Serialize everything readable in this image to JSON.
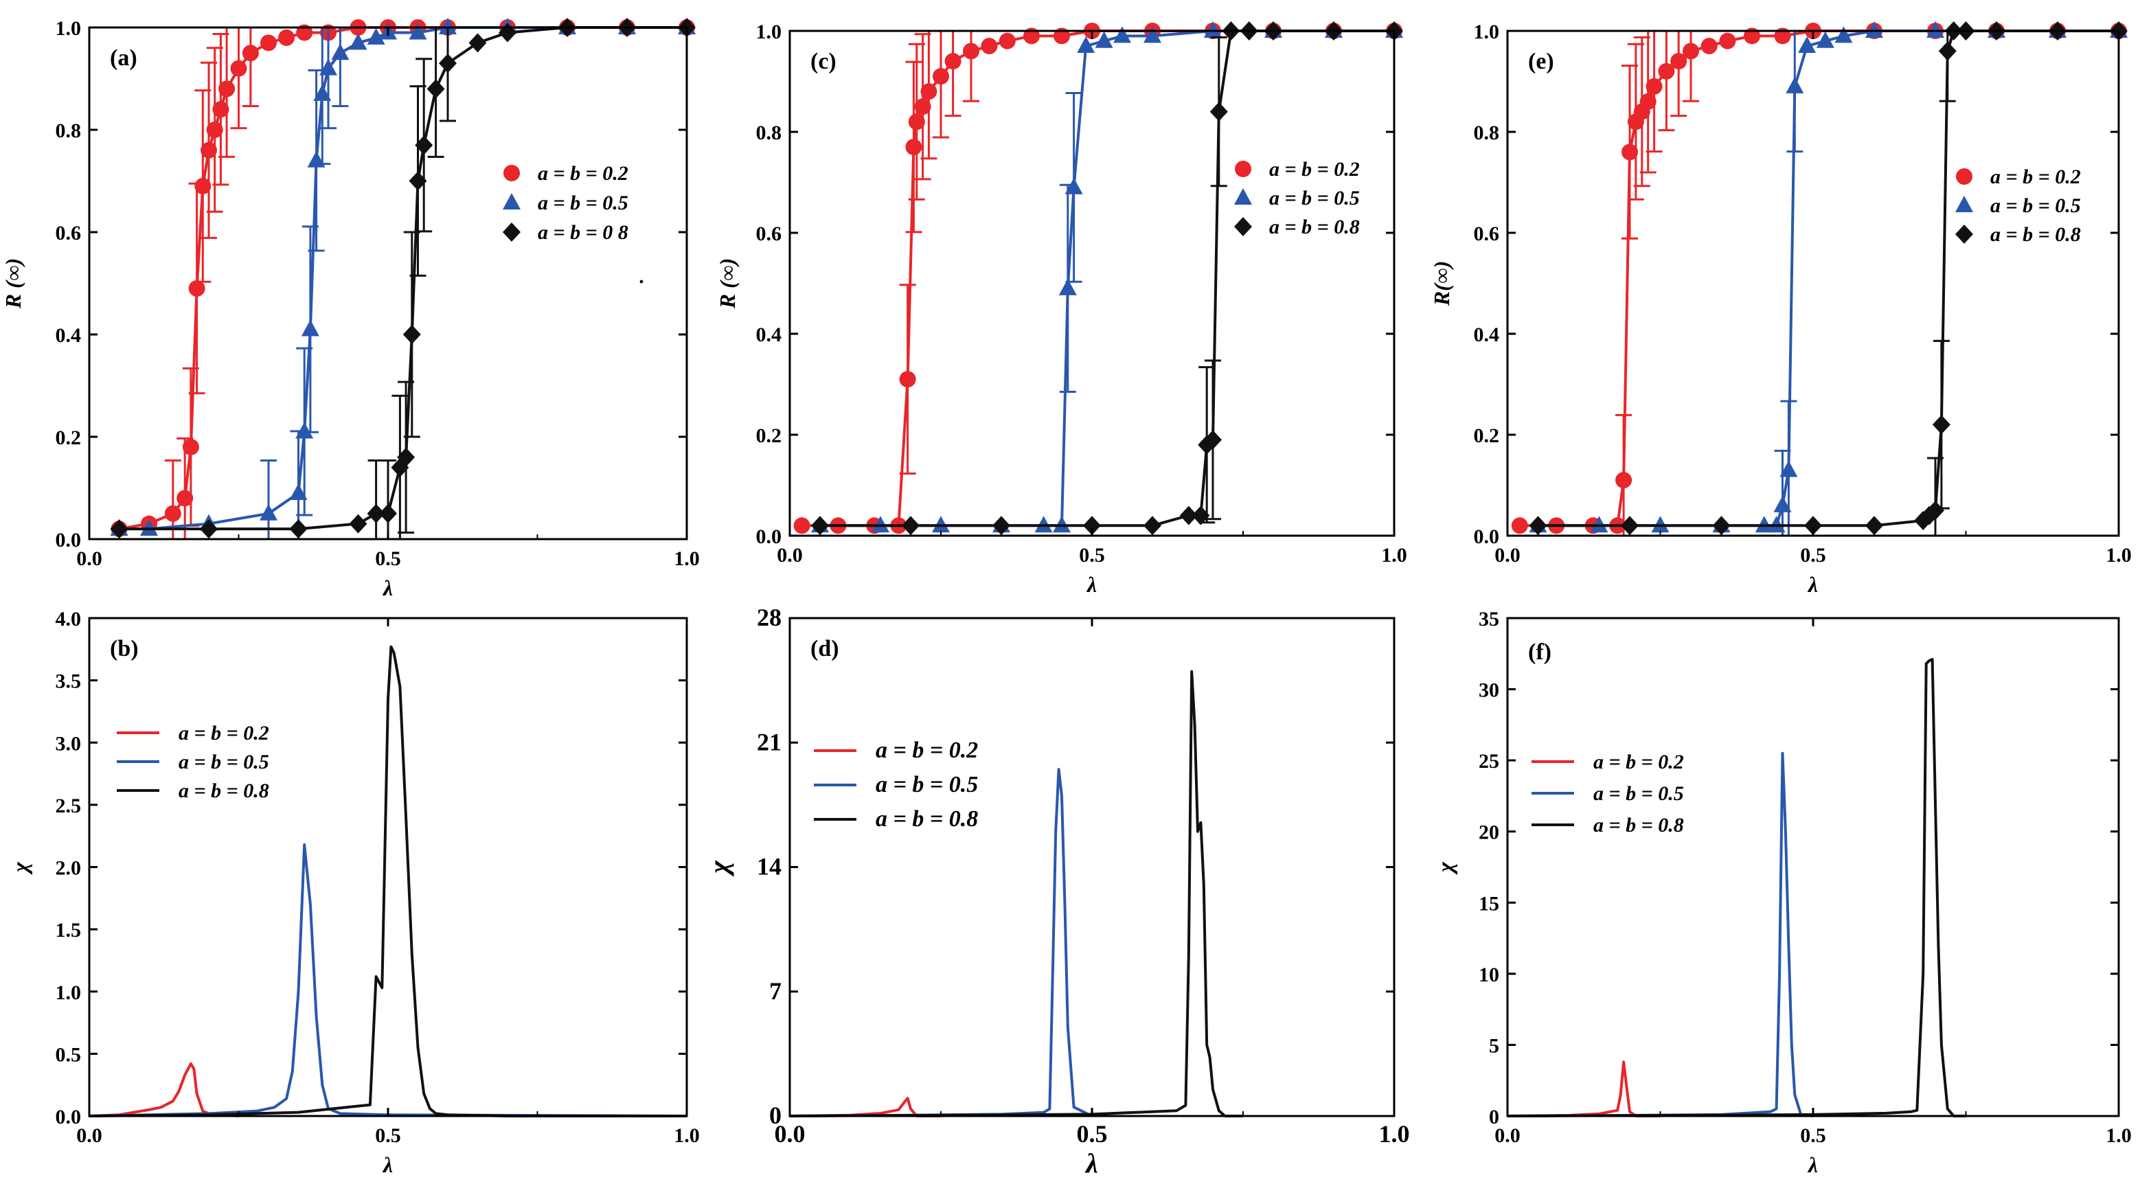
{
  "colors": {
    "red": "#e8262b",
    "blue": "#2a57ae",
    "black": "#111111"
  },
  "chart_data": [
    {
      "panel": "(a)",
      "type": "scatter",
      "xlabel": "λ",
      "ylabel": "R (∞)",
      "xlim": [
        0,
        1
      ],
      "ylim": [
        0,
        1
      ],
      "xticks": [
        "0.0",
        "0.5",
        "1.0"
      ],
      "yticks": [
        "0.0",
        "0.2",
        "0.4",
        "0.6",
        "0.8",
        "1.0"
      ],
      "legend": [
        "a = b = 0.2",
        "a = b = 0.5",
        "a = b = 0 8"
      ],
      "annotation": "·",
      "series": [
        {
          "name": "a = b = 0.2",
          "color": "red",
          "marker": "circle",
          "x": [
            0.05,
            0.1,
            0.14,
            0.16,
            0.17,
            0.18,
            0.19,
            0.2,
            0.21,
            0.22,
            0.23,
            0.25,
            0.27,
            0.3,
            0.33,
            0.36,
            0.4,
            0.45,
            0.5,
            0.55,
            0.6,
            0.7,
            0.8,
            0.9,
            1.0
          ],
          "y": [
            0.02,
            0.03,
            0.05,
            0.08,
            0.18,
            0.49,
            0.69,
            0.76,
            0.8,
            0.84,
            0.88,
            0.92,
            0.95,
            0.97,
            0.98,
            0.99,
            0.99,
            1.0,
            1.0,
            1.0,
            1.0,
            1.0,
            1.0,
            1.0,
            1.0
          ]
        },
        {
          "name": "a = b = 0.5",
          "color": "blue",
          "marker": "triangle",
          "x": [
            0.05,
            0.1,
            0.2,
            0.3,
            0.35,
            0.36,
            0.37,
            0.38,
            0.39,
            0.4,
            0.42,
            0.45,
            0.48,
            0.5,
            0.55,
            0.6,
            0.7,
            0.8,
            0.9,
            1.0
          ],
          "y": [
            0.02,
            0.02,
            0.03,
            0.05,
            0.09,
            0.21,
            0.41,
            0.74,
            0.87,
            0.92,
            0.95,
            0.97,
            0.98,
            0.99,
            0.99,
            1.0,
            1.0,
            1.0,
            1.0,
            1.0
          ]
        },
        {
          "name": "a = b = 0 8",
          "color": "black",
          "marker": "diamond",
          "x": [
            0.05,
            0.2,
            0.35,
            0.45,
            0.48,
            0.5,
            0.52,
            0.53,
            0.54,
            0.55,
            0.56,
            0.58,
            0.6,
            0.65,
            0.7,
            0.8,
            0.9,
            1.0
          ],
          "y": [
            0.02,
            0.02,
            0.02,
            0.03,
            0.05,
            0.05,
            0.14,
            0.16,
            0.4,
            0.7,
            0.77,
            0.88,
            0.93,
            0.97,
            0.99,
            1.0,
            1.0,
            1.0
          ]
        }
      ]
    },
    {
      "panel": "(b)",
      "type": "line",
      "xlabel": "λ",
      "ylabel": "χ",
      "xlim": [
        0,
        1
      ],
      "ylim": [
        0,
        4
      ],
      "xticks": [
        "0.0",
        "0.5",
        "1.0"
      ],
      "yticks": [
        "0.0",
        "0.5",
        "1.0",
        "1.5",
        "2.0",
        "2.5",
        "3.0",
        "3.5",
        "4.0"
      ],
      "legend": [
        "a = b = 0.2",
        "a = b = 0.5",
        "a = b = 0.8"
      ],
      "series": [
        {
          "name": "a = b = 0.2",
          "color": "red",
          "x": [
            0.0,
            0.05,
            0.1,
            0.12,
            0.14,
            0.15,
            0.16,
            0.17,
            0.175,
            0.18,
            0.19,
            0.2,
            0.22,
            0.25
          ],
          "y": [
            0.0,
            0.01,
            0.05,
            0.07,
            0.12,
            0.2,
            0.33,
            0.42,
            0.38,
            0.18,
            0.04,
            0.02,
            0.01,
            0.0
          ]
        },
        {
          "name": "a = b = 0.5",
          "color": "blue",
          "x": [
            0.0,
            0.1,
            0.2,
            0.28,
            0.31,
            0.33,
            0.34,
            0.35,
            0.36,
            0.37,
            0.38,
            0.39,
            0.4,
            0.42,
            0.5,
            1.0
          ],
          "y": [
            0.0,
            0.01,
            0.02,
            0.04,
            0.07,
            0.14,
            0.36,
            1.0,
            2.18,
            1.7,
            0.8,
            0.25,
            0.06,
            0.02,
            0.01,
            0.0
          ]
        },
        {
          "name": "a = b = 0.8",
          "color": "black",
          "x": [
            0.0,
            0.2,
            0.35,
            0.45,
            0.47,
            0.48,
            0.49,
            0.5,
            0.505,
            0.51,
            0.52,
            0.53,
            0.54,
            0.55,
            0.56,
            0.57,
            0.58,
            0.6,
            0.7,
            1.0
          ],
          "y": [
            0.0,
            0.01,
            0.03,
            0.08,
            0.09,
            1.12,
            1.03,
            3.35,
            3.77,
            3.72,
            3.45,
            2.4,
            1.3,
            0.55,
            0.18,
            0.06,
            0.02,
            0.01,
            0.0,
            0.0
          ]
        }
      ]
    },
    {
      "panel": "(c)",
      "type": "scatter",
      "xlabel": "λ",
      "ylabel": "R (∞)",
      "xlim": [
        0,
        1
      ],
      "ylim": [
        0,
        1
      ],
      "xticks": [
        "0.0",
        "0.5",
        "1.0"
      ],
      "yticks": [
        "0.0",
        "0.2",
        "0.4",
        "0.6",
        "0.8",
        "1.0"
      ],
      "legend": [
        "a = b = 0.2",
        "a = b = 0.5",
        "a = b = 0.8"
      ],
      "series": [
        {
          "name": "a = b = 0.2",
          "color": "red",
          "marker": "circle",
          "x": [
            0.02,
            0.08,
            0.14,
            0.18,
            0.195,
            0.205,
            0.21,
            0.22,
            0.23,
            0.25,
            0.27,
            0.3,
            0.33,
            0.36,
            0.4,
            0.45,
            0.5,
            0.6,
            0.7,
            0.8,
            0.9,
            1.0
          ],
          "y": [
            0.02,
            0.02,
            0.02,
            0.02,
            0.31,
            0.77,
            0.82,
            0.85,
            0.88,
            0.91,
            0.94,
            0.96,
            0.97,
            0.98,
            0.99,
            0.99,
            1.0,
            1.0,
            1.0,
            1.0,
            1.0,
            1.0
          ]
        },
        {
          "name": "a = b = 0.5",
          "color": "blue",
          "marker": "triangle",
          "x": [
            0.05,
            0.15,
            0.25,
            0.35,
            0.42,
            0.45,
            0.46,
            0.47,
            0.49,
            0.52,
            0.55,
            0.6,
            0.7,
            0.8,
            0.9,
            1.0
          ],
          "y": [
            0.02,
            0.02,
            0.02,
            0.02,
            0.02,
            0.02,
            0.49,
            0.69,
            0.97,
            0.98,
            0.99,
            0.99,
            1.0,
            1.0,
            1.0,
            1.0
          ]
        },
        {
          "name": "a = b = 0.8",
          "color": "black",
          "marker": "diamond",
          "x": [
            0.05,
            0.2,
            0.35,
            0.5,
            0.6,
            0.66,
            0.68,
            0.69,
            0.7,
            0.71,
            0.73,
            0.76,
            0.8,
            0.9,
            1.0
          ],
          "y": [
            0.02,
            0.02,
            0.02,
            0.02,
            0.02,
            0.04,
            0.04,
            0.18,
            0.19,
            0.84,
            1.0,
            1.0,
            1.0,
            1.0,
            1.0
          ]
        }
      ]
    },
    {
      "panel": "(d)",
      "type": "line",
      "xlabel": "λ",
      "ylabel": "χ",
      "xlim": [
        0,
        1
      ],
      "ylim": [
        0,
        28
      ],
      "xticks": [
        "0.0",
        "0.5",
        "1.0"
      ],
      "yticks": [
        "0",
        "7",
        "14",
        "21",
        "28"
      ],
      "legend": [
        "a = b = 0.2",
        "a = b = 0.5",
        "a = b = 0.8"
      ],
      "series": [
        {
          "name": "a = b = 0.2",
          "color": "red",
          "x": [
            0.0,
            0.1,
            0.15,
            0.18,
            0.19,
            0.195,
            0.2,
            0.21,
            0.25
          ],
          "y": [
            0.0,
            0.05,
            0.15,
            0.35,
            0.8,
            1.0,
            0.4,
            0.0,
            0.0
          ]
        },
        {
          "name": "a = b = 0.5",
          "color": "blue",
          "x": [
            0.0,
            0.2,
            0.35,
            0.42,
            0.43,
            0.435,
            0.44,
            0.445,
            0.45,
            0.455,
            0.46,
            0.47,
            0.5
          ],
          "y": [
            0.0,
            0.05,
            0.1,
            0.2,
            0.4,
            8.0,
            16.0,
            19.5,
            18.0,
            12.0,
            5.0,
            0.5,
            0.0
          ]
        },
        {
          "name": "a = b = 0.8",
          "color": "black",
          "x": [
            0.0,
            0.3,
            0.5,
            0.64,
            0.655,
            0.66,
            0.665,
            0.67,
            0.675,
            0.68,
            0.685,
            0.69,
            0.695,
            0.7,
            0.71,
            0.72,
            0.75
          ],
          "y": [
            0.0,
            0.05,
            0.1,
            0.3,
            0.6,
            9.0,
            25.0,
            22.0,
            16.0,
            16.5,
            13.0,
            4.0,
            3.3,
            1.5,
            0.3,
            0.0,
            0.0
          ]
        }
      ]
    },
    {
      "panel": "(e)",
      "type": "scatter",
      "xlabel": "λ",
      "ylabel": "R(∞)",
      "xlim": [
        0,
        1
      ],
      "ylim": [
        0,
        1
      ],
      "xticks": [
        "0.0",
        "0.5",
        "1.0"
      ],
      "yticks": [
        "0.0",
        "0.2",
        "0.4",
        "0.6",
        "0.8",
        "1.0"
      ],
      "legend": [
        "a = b = 0.2",
        "a = b = 0.5",
        "a = b = 0.8"
      ],
      "series": [
        {
          "name": "a = b = 0.2",
          "color": "red",
          "marker": "circle",
          "x": [
            0.02,
            0.08,
            0.14,
            0.18,
            0.19,
            0.2,
            0.21,
            0.22,
            0.23,
            0.24,
            0.26,
            0.28,
            0.3,
            0.33,
            0.36,
            0.4,
            0.45,
            0.5,
            0.6,
            0.7,
            0.8,
            0.9,
            1.0
          ],
          "y": [
            0.02,
            0.02,
            0.02,
            0.02,
            0.11,
            0.76,
            0.82,
            0.84,
            0.86,
            0.89,
            0.92,
            0.94,
            0.96,
            0.97,
            0.98,
            0.99,
            0.99,
            1.0,
            1.0,
            1.0,
            1.0,
            1.0,
            1.0
          ]
        },
        {
          "name": "a = b = 0.5",
          "color": "blue",
          "marker": "triangle",
          "x": [
            0.05,
            0.15,
            0.25,
            0.35,
            0.42,
            0.44,
            0.45,
            0.46,
            0.47,
            0.49,
            0.52,
            0.55,
            0.6,
            0.7,
            0.8,
            0.9,
            1.0
          ],
          "y": [
            0.02,
            0.02,
            0.02,
            0.02,
            0.02,
            0.02,
            0.06,
            0.13,
            0.89,
            0.97,
            0.98,
            0.99,
            1.0,
            1.0,
            1.0,
            1.0,
            1.0
          ]
        },
        {
          "name": "a = b = 0.8",
          "color": "black",
          "marker": "diamond",
          "x": [
            0.05,
            0.2,
            0.35,
            0.5,
            0.6,
            0.68,
            0.69,
            0.7,
            0.71,
            0.72,
            0.73,
            0.75,
            0.8,
            0.9,
            1.0
          ],
          "y": [
            0.02,
            0.02,
            0.02,
            0.02,
            0.02,
            0.03,
            0.04,
            0.05,
            0.22,
            0.96,
            1.0,
            1.0,
            1.0,
            1.0,
            1.0
          ]
        }
      ]
    },
    {
      "panel": "(f)",
      "type": "line",
      "xlabel": "λ",
      "ylabel": "χ",
      "xlim": [
        0,
        1
      ],
      "ylim": [
        0,
        35
      ],
      "xticks": [
        "0.0",
        "0.5",
        "1.0"
      ],
      "yticks": [
        "0",
        "5",
        "10",
        "15",
        "20",
        "25",
        "30",
        "35"
      ],
      "legend": [
        "a = b = 0.2",
        "a = b = 0.5",
        "a = b = 0.8"
      ],
      "series": [
        {
          "name": "a = b = 0.2",
          "color": "red",
          "x": [
            0.0,
            0.1,
            0.15,
            0.18,
            0.185,
            0.19,
            0.195,
            0.2,
            0.21,
            0.25
          ],
          "y": [
            0.0,
            0.05,
            0.15,
            0.4,
            1.5,
            3.8,
            2.0,
            0.3,
            0.0,
            0.0
          ]
        },
        {
          "name": "a = b = 0.5",
          "color": "blue",
          "x": [
            0.0,
            0.2,
            0.35,
            0.43,
            0.44,
            0.445,
            0.45,
            0.455,
            0.46,
            0.465,
            0.47,
            0.48,
            0.5
          ],
          "y": [
            0.0,
            0.05,
            0.1,
            0.3,
            0.5,
            10.0,
            25.5,
            20.0,
            12.0,
            5.0,
            1.5,
            0.1,
            0.0
          ]
        },
        {
          "name": "a = b = 0.8",
          "color": "black",
          "x": [
            0.0,
            0.3,
            0.5,
            0.62,
            0.66,
            0.67,
            0.68,
            0.685,
            0.69,
            0.695,
            0.7,
            0.705,
            0.71,
            0.72,
            0.73,
            0.75
          ],
          "y": [
            0.0,
            0.05,
            0.1,
            0.2,
            0.3,
            0.4,
            10.0,
            31.8,
            32.0,
            32.1,
            22.0,
            12.0,
            5.0,
            0.5,
            0.0,
            0.0
          ]
        }
      ]
    }
  ]
}
